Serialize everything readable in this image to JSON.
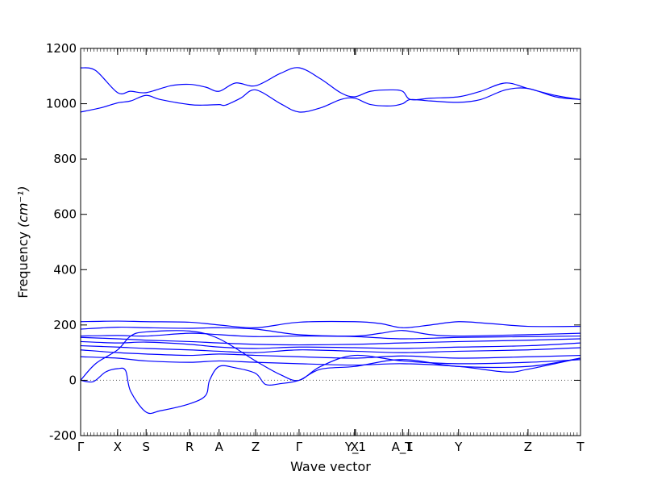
{
  "chart_data": {
    "type": "line",
    "title": "",
    "xlabel": "Wave vector",
    "ylabel": "Frequency",
    "ylabel_unit": "(cm⁻¹)",
    "ylim": [
      -200,
      1200
    ],
    "yticks": [
      -200,
      0,
      200,
      400,
      600,
      800,
      1000,
      1200
    ],
    "xlim": [
      0,
      100
    ],
    "high_symmetry_points": [
      {
        "label": "Γ",
        "x": 0
      },
      {
        "label": "X",
        "x": 7.4
      },
      {
        "label": "S",
        "x": 13.1
      },
      {
        "label": "R",
        "x": 21.8
      },
      {
        "label": "A",
        "x": 27.7
      },
      {
        "label": "Z",
        "x": 35.0
      },
      {
        "label": "Γ",
        "x": 43.7
      },
      {
        "label": "X",
        "x": 54.8
      },
      {
        "label": "Y_1",
        "x": 55.0
      },
      {
        "label": "A_1",
        "x": 64.4
      },
      {
        "label": "T",
        "x": 65.6
      },
      {
        "label": "Y",
        "x": 75.6
      },
      {
        "label": "Z",
        "x": 89.5
      },
      {
        "label": "T",
        "x": 100
      }
    ],
    "zero_line": true,
    "line_color": "#0000ff",
    "series": [
      {
        "values": [
          [
            0,
            1130
          ],
          [
            3,
            1120
          ],
          [
            7.4,
            1040
          ],
          [
            10,
            1045
          ],
          [
            13.1,
            1040
          ],
          [
            18,
            1065
          ],
          [
            21.8,
            1070
          ],
          [
            25,
            1060
          ],
          [
            27.7,
            1045
          ],
          [
            31,
            1075
          ],
          [
            35,
            1065
          ],
          [
            40,
            1110
          ],
          [
            43.7,
            1130
          ],
          [
            48,
            1090
          ],
          [
            52,
            1040
          ],
          [
            54.8,
            1025
          ],
          [
            58,
            1045
          ],
          [
            62,
            1050
          ],
          [
            64.4,
            1045
          ],
          [
            66,
            1015
          ],
          [
            70,
            1020
          ],
          [
            75.6,
            1025
          ],
          [
            80,
            1045
          ],
          [
            85,
            1075
          ],
          [
            89.5,
            1055
          ],
          [
            95,
            1030
          ],
          [
            100,
            1015
          ]
        ]
      },
      {
        "values": [
          [
            0,
            970
          ],
          [
            4,
            985
          ],
          [
            7.4,
            1003
          ],
          [
            10,
            1010
          ],
          [
            13.1,
            1030
          ],
          [
            16,
            1015
          ],
          [
            21.8,
            997
          ],
          [
            25,
            995
          ],
          [
            27.7,
            997
          ],
          [
            29,
            995
          ],
          [
            32,
            1020
          ],
          [
            35,
            1050
          ],
          [
            40,
            1000
          ],
          [
            43.7,
            970
          ],
          [
            48,
            985
          ],
          [
            52,
            1015
          ],
          [
            54.8,
            1020
          ],
          [
            58,
            997
          ],
          [
            62,
            992
          ],
          [
            64.4,
            1000
          ],
          [
            66,
            1015
          ],
          [
            70,
            1010
          ],
          [
            75.6,
            1005
          ],
          [
            80,
            1015
          ],
          [
            85,
            1050
          ],
          [
            89.5,
            1055
          ],
          [
            95,
            1025
          ],
          [
            100,
            1015
          ]
        ]
      },
      {
        "values": [
          [
            0,
            212
          ],
          [
            7.4,
            214
          ],
          [
            13.1,
            212
          ],
          [
            21.8,
            210
          ],
          [
            27.7,
            200
          ],
          [
            35,
            190
          ],
          [
            43.7,
            210
          ],
          [
            54.8,
            212
          ],
          [
            60,
            205
          ],
          [
            64.4,
            190
          ],
          [
            70,
            200
          ],
          [
            75.6,
            212
          ],
          [
            82,
            205
          ],
          [
            89.5,
            195
          ],
          [
            100,
            195
          ]
        ]
      },
      {
        "values": [
          [
            0,
            185
          ],
          [
            7.4,
            192
          ],
          [
            13.1,
            190
          ],
          [
            21.8,
            188
          ],
          [
            27.7,
            190
          ],
          [
            35,
            185
          ],
          [
            43.7,
            165
          ],
          [
            54.8,
            160
          ],
          [
            60,
            170
          ],
          [
            64.4,
            180
          ],
          [
            70,
            165
          ],
          [
            75.6,
            160
          ],
          [
            89.5,
            165
          ],
          [
            100,
            170
          ]
        ]
      },
      {
        "values": [
          [
            0,
            160
          ],
          [
            7.4,
            162
          ],
          [
            13.1,
            160
          ],
          [
            21.8,
            170
          ],
          [
            27.7,
            165
          ],
          [
            35,
            158
          ],
          [
            43.7,
            160
          ],
          [
            54.8,
            158
          ],
          [
            64.4,
            150
          ],
          [
            75.6,
            155
          ],
          [
            89.5,
            158
          ],
          [
            100,
            160
          ]
        ]
      },
      {
        "values": [
          [
            0,
            155
          ],
          [
            7.4,
            150
          ],
          [
            13.1,
            145
          ],
          [
            21.8,
            140
          ],
          [
            27.7,
            135
          ],
          [
            35,
            130
          ],
          [
            43.7,
            128
          ],
          [
            54.8,
            130
          ],
          [
            64.4,
            135
          ],
          [
            75.6,
            140
          ],
          [
            89.5,
            145
          ],
          [
            100,
            150
          ]
        ]
      },
      {
        "values": [
          [
            0,
            140
          ],
          [
            7.4,
            135
          ],
          [
            13.1,
            138
          ],
          [
            21.8,
            130
          ],
          [
            27.7,
            120
          ],
          [
            35,
            115
          ],
          [
            43.7,
            120
          ],
          [
            54.8,
            118
          ],
          [
            64.4,
            115
          ],
          [
            75.6,
            120
          ],
          [
            89.5,
            125
          ],
          [
            100,
            135
          ]
        ]
      },
      {
        "values": [
          [
            0,
            125
          ],
          [
            7.4,
            120
          ],
          [
            13.1,
            115
          ],
          [
            21.8,
            110
          ],
          [
            27.7,
            105
          ],
          [
            35,
            100
          ],
          [
            43.7,
            110
          ],
          [
            54.8,
            105
          ],
          [
            64.4,
            100
          ],
          [
            75.6,
            105
          ],
          [
            89.5,
            110
          ],
          [
            100,
            118
          ]
        ]
      },
      {
        "values": [
          [
            0,
            110
          ],
          [
            7.4,
            100
          ],
          [
            13.1,
            95
          ],
          [
            21.8,
            90
          ],
          [
            27.7,
            95
          ],
          [
            35,
            90
          ],
          [
            43.7,
            85
          ],
          [
            54.8,
            80
          ],
          [
            64.4,
            88
          ],
          [
            75.6,
            80
          ],
          [
            89.5,
            85
          ],
          [
            100,
            90
          ]
        ]
      },
      {
        "values": [
          [
            0,
            85
          ],
          [
            7.4,
            80
          ],
          [
            13.1,
            70
          ],
          [
            21.8,
            65
          ],
          [
            27.7,
            70
          ],
          [
            35,
            65
          ],
          [
            43.7,
            60
          ],
          [
            54.8,
            55
          ],
          [
            64.4,
            60
          ],
          [
            75.6,
            50
          ],
          [
            85,
            30
          ],
          [
            89.5,
            40
          ],
          [
            100,
            80
          ]
        ]
      },
      {
        "values": [
          [
            0,
            0
          ],
          [
            3,
            60
          ],
          [
            7.4,
            110
          ],
          [
            10,
            160
          ],
          [
            13.1,
            175
          ],
          [
            21.8,
            178
          ],
          [
            27.7,
            150
          ],
          [
            35,
            70
          ],
          [
            40,
            20
          ],
          [
            43.7,
            0
          ],
          [
            48,
            50
          ],
          [
            54.8,
            90
          ],
          [
            64.4,
            70
          ],
          [
            75.6,
            60
          ],
          [
            89.5,
            65
          ],
          [
            100,
            75
          ]
        ]
      },
      {
        "values": [
          [
            0,
            0
          ],
          [
            2.5,
            -5
          ],
          [
            5,
            30
          ],
          [
            7.4,
            42
          ],
          [
            9,
            35
          ],
          [
            10,
            -40
          ],
          [
            13.1,
            -115
          ],
          [
            16,
            -110
          ],
          [
            21.8,
            -85
          ],
          [
            25,
            -55
          ],
          [
            25.8,
            0
          ],
          [
            27.7,
            50
          ],
          [
            31,
            45
          ],
          [
            35,
            25
          ],
          [
            37,
            -15
          ],
          [
            40,
            -12
          ],
          [
            43.7,
            0
          ],
          [
            48,
            40
          ],
          [
            54.8,
            50
          ],
          [
            64.4,
            75
          ],
          [
            75.6,
            50
          ],
          [
            89.5,
            50
          ],
          [
            100,
            80
          ]
        ]
      }
    ]
  }
}
